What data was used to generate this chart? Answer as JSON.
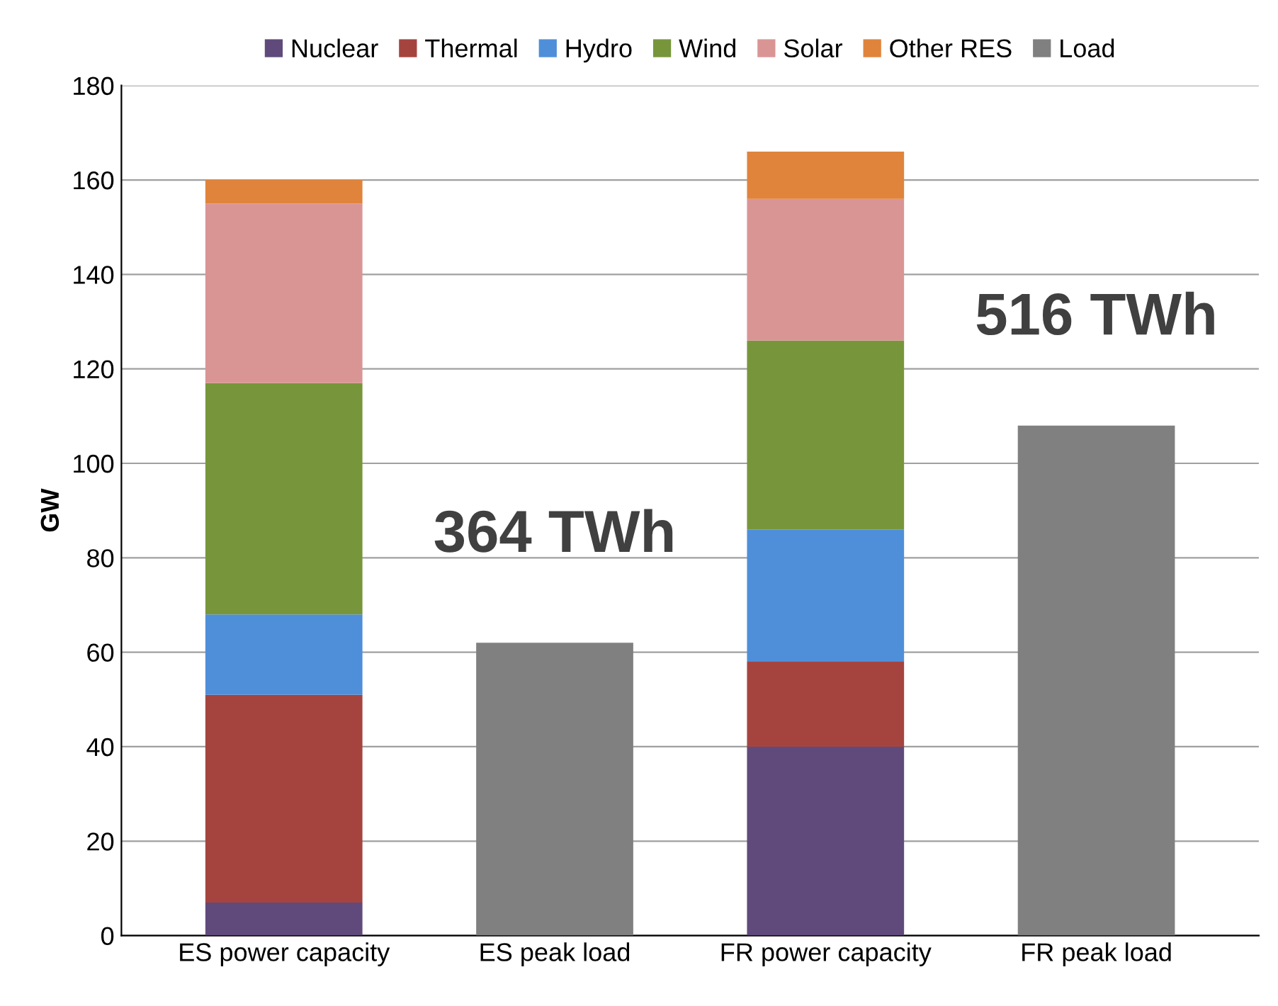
{
  "chart_data": {
    "type": "bar",
    "stacked": true,
    "ylabel": "GW",
    "categories": [
      "ES power capacity",
      "ES peak load",
      "FR power capacity",
      "FR peak load"
    ],
    "series": [
      {
        "name": "Nuclear",
        "color": "#604a7b",
        "values": [
          7,
          null,
          40,
          null
        ]
      },
      {
        "name": "Thermal",
        "color": "#a5443f",
        "values": [
          44,
          null,
          18,
          null
        ]
      },
      {
        "name": "Hydro",
        "color": "#4f8fd9",
        "values": [
          17,
          null,
          28,
          null
        ]
      },
      {
        "name": "Wind",
        "color": "#77963b",
        "values": [
          49,
          null,
          40,
          null
        ]
      },
      {
        "name": "Solar",
        "color": "#d99594",
        "values": [
          38,
          null,
          30,
          null
        ]
      },
      {
        "name": "Other RES",
        "color": "#e0843c",
        "values": [
          5,
          null,
          10,
          null
        ]
      },
      {
        "name": "Load",
        "color": "#808080",
        "values": [
          null,
          62,
          null,
          108
        ]
      }
    ],
    "ylim": [
      0,
      180
    ],
    "yticks": [
      0,
      20,
      40,
      60,
      80,
      100,
      120,
      140,
      160,
      180
    ],
    "grid": "y",
    "legend": "top",
    "annotations": [
      "364 TWh",
      "516 TWh"
    ]
  }
}
